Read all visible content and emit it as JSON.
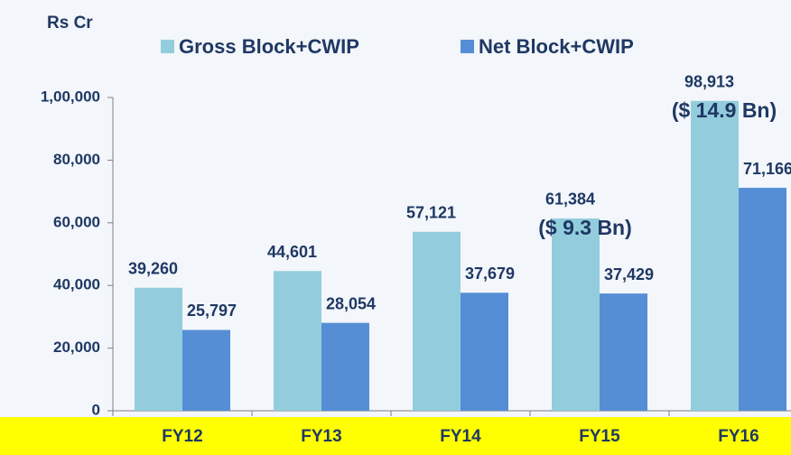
{
  "chart_data": {
    "type": "bar",
    "title": "Rs Cr",
    "categories": [
      "FY12",
      "FY13",
      "FY14",
      "FY15",
      "FY16"
    ],
    "series": [
      {
        "name": "Gross Block+CWIP",
        "color": "#93cddd",
        "values": [
          39260,
          44601,
          57121,
          61384,
          98913
        ],
        "value_labels": [
          "39,260",
          "44,601",
          "57,121",
          "61,384",
          "98,913"
        ]
      },
      {
        "name": "Net Block+CWIP",
        "color": "#558ed5",
        "values": [
          25797,
          28054,
          37679,
          37429,
          71166
        ],
        "value_labels": [
          "25,797",
          "28,054",
          "37,679",
          "37,429",
          "71,166"
        ]
      }
    ],
    "ylim": [
      0,
      100000
    ],
    "yticks": [
      0,
      {
        "value": 20000,
        "label": "20,000"
      },
      {
        "value": 40000,
        "label": "40,000"
      },
      {
        "value": 60000,
        "label": "60,000"
      },
      {
        "value": 80000,
        "label": "80,000"
      },
      {
        "value": 100000,
        "label": "1,00,000"
      }
    ],
    "grid": false,
    "legend": "top",
    "annotations": [
      {
        "text": "($ 9.3 Bn)",
        "category": "FY15"
      },
      {
        "text": "($ 14.9 Bn)",
        "category": "FY16"
      }
    ]
  }
}
